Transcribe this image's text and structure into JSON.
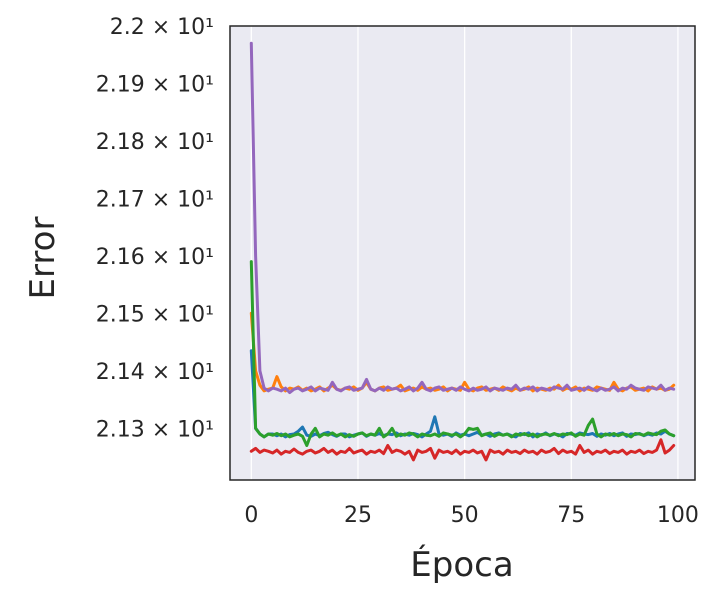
{
  "chart_data": {
    "type": "line",
    "title": "",
    "xlabel": "Época",
    "ylabel": "Error",
    "xlim": [
      -5,
      104
    ],
    "ylim": [
      21.21,
      22.0
    ],
    "grid": true,
    "grid_axis": "x",
    "legend": "none",
    "x_ticks": [
      {
        "value": 0,
        "label": "0"
      },
      {
        "value": 25,
        "label": "25"
      },
      {
        "value": 50,
        "label": "50"
      },
      {
        "value": 75,
        "label": "75"
      },
      {
        "value": 100,
        "label": "100"
      }
    ],
    "y_ticks": [
      {
        "value": 21.3,
        "label": "2.13 × 10¹"
      },
      {
        "value": 21.4,
        "label": "2.14 × 10¹"
      },
      {
        "value": 21.5,
        "label": "2.15 × 10¹"
      },
      {
        "value": 21.6,
        "label": "2.16 × 10¹"
      },
      {
        "value": 21.7,
        "label": "2.17 × 10¹"
      },
      {
        "value": 21.8,
        "label": "2.18 × 10¹"
      },
      {
        "value": 21.9,
        "label": "2.19 × 10¹"
      },
      {
        "value": 22.0,
        "label": "2.2 × 10¹"
      }
    ],
    "series": [
      {
        "color": "#1f77b4",
        "y": [
          21.435,
          21.3,
          21.29,
          21.285,
          21.29,
          21.29,
          21.287,
          21.29,
          21.285,
          21.289,
          21.29,
          21.295,
          21.302,
          21.288,
          21.286,
          21.29,
          21.287,
          21.291,
          21.293,
          21.289,
          21.286,
          21.29,
          21.29,
          21.285,
          21.288,
          21.29,
          21.292,
          21.286,
          21.29,
          21.288,
          21.291,
          21.287,
          21.29,
          21.289,
          21.292,
          21.287,
          21.29,
          21.288,
          21.291,
          21.289,
          21.285,
          21.29,
          21.295,
          21.32,
          21.29,
          21.288,
          21.29,
          21.286,
          21.292,
          21.288,
          21.29,
          21.287,
          21.29,
          21.293,
          21.288,
          21.29,
          21.286,
          21.29,
          21.292,
          21.288,
          21.29,
          21.287,
          21.285,
          21.291,
          21.289,
          21.292,
          21.285,
          21.29,
          21.288,
          21.292,
          21.287,
          21.29,
          21.289,
          21.285,
          21.291,
          21.29,
          21.288,
          21.292,
          21.29,
          21.289,
          21.291,
          21.286,
          21.29,
          21.288,
          21.291,
          21.287,
          21.29,
          21.292,
          21.286,
          21.29,
          21.289,
          21.291,
          21.287,
          21.29,
          21.288,
          21.292,
          21.29,
          21.295,
          21.29,
          21.287
        ]
      },
      {
        "color": "#ff7f0e",
        "y": [
          21.5,
          21.4,
          21.375,
          21.365,
          21.368,
          21.37,
          21.39,
          21.372,
          21.365,
          21.37,
          21.368,
          21.372,
          21.366,
          21.37,
          21.365,
          21.368,
          21.372,
          21.365,
          21.37,
          21.375,
          21.368,
          21.366,
          21.37,
          21.368,
          21.372,
          21.366,
          21.37,
          21.38,
          21.368,
          21.365,
          21.37,
          21.372,
          21.366,
          21.368,
          21.37,
          21.375,
          21.365,
          21.368,
          21.37,
          21.366,
          21.372,
          21.368,
          21.37,
          21.366,
          21.368,
          21.372,
          21.365,
          21.37,
          21.368,
          21.366,
          21.38,
          21.368,
          21.365,
          21.37,
          21.372,
          21.366,
          21.368,
          21.37,
          21.366,
          21.372,
          21.368,
          21.365,
          21.37,
          21.366,
          21.368,
          21.372,
          21.365,
          21.37,
          21.368,
          21.366,
          21.37,
          21.368,
          21.375,
          21.366,
          21.37,
          21.368,
          21.372,
          21.365,
          21.37,
          21.368,
          21.366,
          21.372,
          21.37,
          21.368,
          21.366,
          21.38,
          21.368,
          21.365,
          21.37,
          21.372,
          21.366,
          21.368,
          21.37,
          21.365,
          21.372,
          21.368,
          21.37,
          21.366,
          21.368,
          21.375
        ]
      },
      {
        "color": "#2ca02c",
        "y": [
          21.59,
          21.3,
          21.29,
          21.285,
          21.29,
          21.288,
          21.291,
          21.287,
          21.29,
          21.285,
          21.288,
          21.29,
          21.286,
          21.27,
          21.29,
          21.3,
          21.285,
          21.29,
          21.288,
          21.292,
          21.287,
          21.29,
          21.285,
          21.289,
          21.286,
          21.29,
          21.292,
          21.287,
          21.29,
          21.288,
          21.3,
          21.285,
          21.29,
          21.3,
          21.286,
          21.29,
          21.288,
          21.292,
          21.29,
          21.285,
          21.29,
          21.288,
          21.287,
          21.29,
          21.286,
          21.292,
          21.29,
          21.288,
          21.29,
          21.285,
          21.29,
          21.3,
          21.298,
          21.3,
          21.287,
          21.29,
          21.292,
          21.286,
          21.29,
          21.288,
          21.29,
          21.285,
          21.29,
          21.288,
          21.291,
          21.287,
          21.29,
          21.285,
          21.289,
          21.29,
          21.288,
          21.291,
          21.287,
          21.29,
          21.289,
          21.292,
          21.286,
          21.29,
          21.288,
          21.305,
          21.316,
          21.29,
          21.285,
          21.29,
          21.288,
          21.291,
          21.287,
          21.29,
          21.289,
          21.285,
          21.291,
          21.29,
          21.288,
          21.292,
          21.29,
          21.289,
          21.295,
          21.297,
          21.29,
          21.287
        ]
      },
      {
        "color": "#d62728",
        "y": [
          21.26,
          21.265,
          21.258,
          21.262,
          21.26,
          21.257,
          21.262,
          21.255,
          21.26,
          21.258,
          21.264,
          21.258,
          21.255,
          21.26,
          21.262,
          21.257,
          21.26,
          21.265,
          21.258,
          21.262,
          21.255,
          21.26,
          21.258,
          21.265,
          21.257,
          21.26,
          21.262,
          21.255,
          21.26,
          21.258,
          21.262,
          21.256,
          21.27,
          21.258,
          21.262,
          21.26,
          21.255,
          21.26,
          21.245,
          21.262,
          21.258,
          21.26,
          21.265,
          21.248,
          21.262,
          21.258,
          21.26,
          21.256,
          21.262,
          21.255,
          21.26,
          21.258,
          21.262,
          21.257,
          21.26,
          21.245,
          21.262,
          21.258,
          21.26,
          21.255,
          21.262,
          21.258,
          21.26,
          21.256,
          21.262,
          21.258,
          21.26,
          21.255,
          21.262,
          21.258,
          21.26,
          21.265,
          21.256,
          21.262,
          21.258,
          21.26,
          21.255,
          21.27,
          21.258,
          21.262,
          21.255,
          21.26,
          21.258,
          21.262,
          21.256,
          21.26,
          21.258,
          21.262,
          21.255,
          21.26,
          21.258,
          21.262,
          21.256,
          21.26,
          21.258,
          21.262,
          21.28,
          21.257,
          21.262,
          21.27
        ]
      },
      {
        "color": "#9467bd",
        "y": [
          21.97,
          21.6,
          21.4,
          21.37,
          21.365,
          21.37,
          21.368,
          21.365,
          21.37,
          21.362,
          21.368,
          21.37,
          21.365,
          21.368,
          21.372,
          21.365,
          21.37,
          21.368,
          21.366,
          21.38,
          21.368,
          21.365,
          21.37,
          21.372,
          21.366,
          21.368,
          21.37,
          21.385,
          21.368,
          21.365,
          21.37,
          21.366,
          21.372,
          21.368,
          21.37,
          21.365,
          21.368,
          21.372,
          21.365,
          21.37,
          21.38,
          21.368,
          21.365,
          21.37,
          21.372,
          21.366,
          21.368,
          21.37,
          21.366,
          21.372,
          21.368,
          21.365,
          21.37,
          21.366,
          21.368,
          21.372,
          21.365,
          21.37,
          21.368,
          21.366,
          21.37,
          21.368,
          21.375,
          21.366,
          21.37,
          21.368,
          21.372,
          21.365,
          21.37,
          21.368,
          21.366,
          21.372,
          21.37,
          21.368,
          21.375,
          21.366,
          21.368,
          21.37,
          21.366,
          21.372,
          21.368,
          21.365,
          21.37,
          21.366,
          21.368,
          21.372,
          21.365,
          21.37,
          21.368,
          21.375,
          21.37,
          21.368,
          21.366,
          21.372,
          21.37,
          21.368,
          21.375,
          21.366,
          21.37,
          21.368
        ]
      }
    ]
  }
}
